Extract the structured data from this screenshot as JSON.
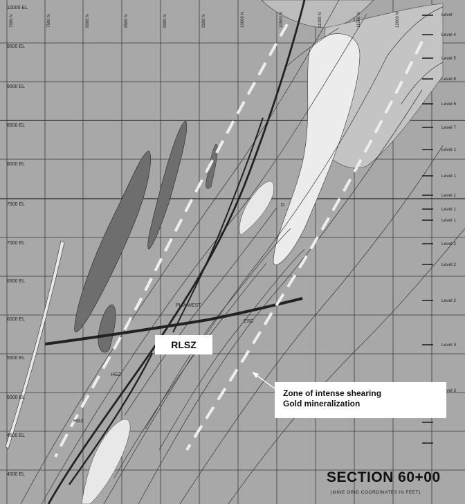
{
  "elevation_labels": [
    "10000 EL",
    "9500 EL",
    "9000 EL",
    "8500 EL",
    "8000 EL",
    "7500 EL",
    "7000 EL",
    "6500 EL",
    "6000 EL",
    "5500 EL",
    "5000 EL",
    "4500 EL",
    "4000 EL"
  ],
  "coordinate_labels": [
    "7000 N",
    "7500 N",
    "8000 N",
    "8500 N",
    "9000 N",
    "9500 N",
    "10000 N",
    "10500 N",
    "11000 N",
    "11500 N",
    "12000 N"
  ],
  "level_labels": [
    "Level",
    "Level 4",
    "Level 5",
    "Level 6",
    "Level 6",
    "Level 7",
    "Level 1",
    "Level 1",
    "Level 1",
    "Level 1",
    "Level 1",
    "Level 2",
    "Level 2",
    "Level 2",
    "Level 3",
    "Level 3"
  ],
  "tags": {
    "plm_west": "PLM WEST",
    "esc": "ESC",
    "hgz_upper": "HGZ",
    "hgz_lower": "HGZ",
    "d_marker": "D"
  },
  "rlsz_label": "RLSZ",
  "zone_annotation": {
    "line1": "Zone of intense shearing",
    "line2": "Gold mineralization"
  },
  "section_title": "SECTION 60+00",
  "section_subtitle": "(MINE GRID COORDINATES IN FEET)",
  "colors": {
    "background": "#a8a8a8",
    "grid": "#3a3a3a",
    "dark_lens": "#6e6e6e",
    "light_lens": "#e8e8e8",
    "light_grey_body": "#c4c4c4",
    "fault_line": "#2a2a2a",
    "dashed_zone": "#eeeeee"
  }
}
